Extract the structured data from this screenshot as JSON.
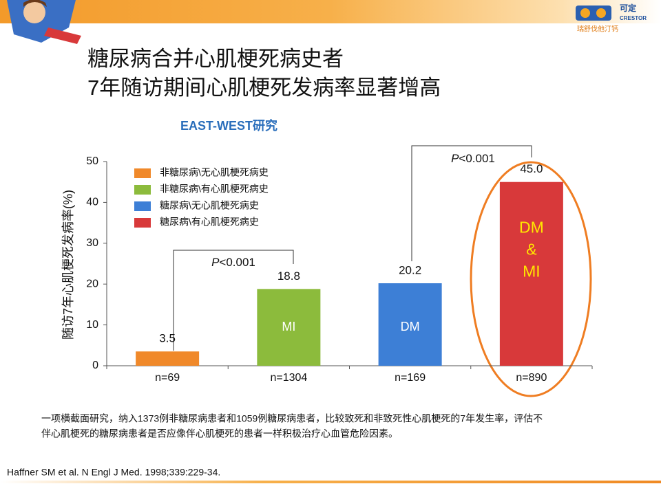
{
  "header": {
    "title_lines": [
      "糖尿病合并心肌梗死病史者",
      "7年随访期间心肌梗死发病率显著增高"
    ],
    "logo": {
      "name": "可定",
      "brand": "CRESTOR",
      "tagline": "瑞舒伐他汀钙"
    }
  },
  "chart_data": {
    "type": "bar",
    "title": "EAST-WEST研究",
    "y_label": "随访7年心肌梗死发病率(%)",
    "categories": [
      "n=69",
      "n=1304",
      "n=169",
      "n=890"
    ],
    "values": [
      3.5,
      18.8,
      20.2,
      45.0
    ],
    "value_labels": [
      "3.5",
      "18.8",
      "20.2",
      "45.0"
    ],
    "colors": [
      "#f0892a",
      "#8cbb3c",
      "#3d7fd6",
      "#d8393a"
    ],
    "legend": [
      "非糖尿病\\无心肌梗死病史",
      "非糖尿病\\有心肌梗死病史",
      "糖尿病\\无心肌梗死病史",
      "糖尿病\\有心肌梗死病史"
    ],
    "bar_labels": [
      null,
      [
        "MI"
      ],
      [
        "DM"
      ],
      [
        "DM",
        "&",
        "MI"
      ]
    ],
    "comparisons": [
      {
        "symbol": "P",
        "text": "<0.001"
      },
      {
        "symbol": "P",
        "text": "<0.001"
      }
    ],
    "ylim": [
      0,
      50
    ],
    "yticks": [
      0,
      10,
      20,
      30,
      40,
      50
    ]
  },
  "footnote_lines": [
    "一项横截面研究，纳入1373例非糖尿病患者和1059例糖尿病患者，比较致死和非致死性心肌梗死的7年发生率，评估不",
    "伴心肌梗死的糖尿病患者是否应像伴心肌梗死的患者一样积极治疗心血管危险因素。"
  ],
  "reference": "Haffner SM et al. N Engl J Med. 1998;339:229-34."
}
